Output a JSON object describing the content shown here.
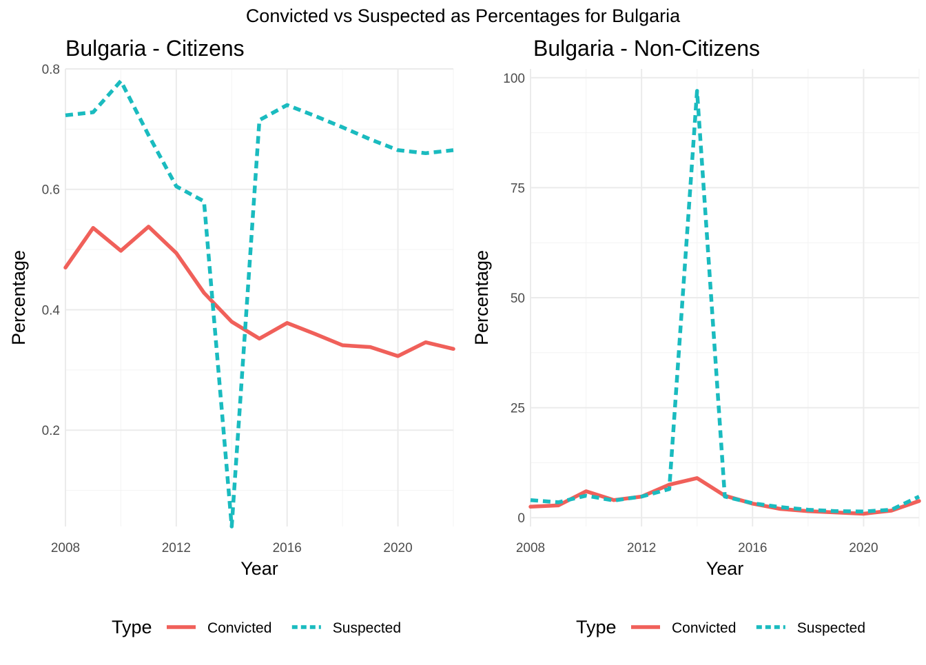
{
  "figure": {
    "title": "Convicted vs Suspected as Percentages for Bulgaria"
  },
  "colors": {
    "convicted": "#F0605A",
    "suspected": "#1ABBBF",
    "grid_major": "#EBEBEB",
    "grid_minor": "#F3F3F3",
    "text": "#000000",
    "tick_text": "#4D4D4D"
  },
  "chart_data": [
    {
      "type": "line",
      "title": "Bulgaria - Citizens",
      "xlabel": "Year",
      "ylabel": "Percentage",
      "xlim": [
        2008,
        2022
      ],
      "ylim": [
        0.04,
        0.8
      ],
      "x_ticks": [
        2008,
        2012,
        2016,
        2020
      ],
      "x_tick_labels": [
        "2008",
        "2012",
        "2016",
        "2020"
      ],
      "y_ticks": [
        0.2,
        0.4,
        0.6,
        0.8
      ],
      "y_tick_labels": [
        "0.2",
        "0.4",
        "0.6",
        "0.8"
      ],
      "grid": true,
      "legend": "bottom",
      "legend_title": "Type",
      "x": [
        2008,
        2009,
        2010,
        2011,
        2012,
        2013,
        2014,
        2015,
        2016,
        2017,
        2018,
        2019,
        2020,
        2021,
        2022
      ],
      "series": [
        {
          "name": "Convicted",
          "line_style": "solid",
          "values": [
            0.47,
            0.536,
            0.498,
            0.538,
            0.494,
            0.428,
            0.38,
            0.352,
            0.378,
            0.36,
            0.341,
            0.338,
            0.323,
            0.346,
            0.335
          ]
        },
        {
          "name": "Suspected",
          "line_style": "dashed",
          "values": [
            0.723,
            0.728,
            0.78,
            0.69,
            0.605,
            0.58,
            0.04,
            0.715,
            0.74,
            0.722,
            0.703,
            0.683,
            0.665,
            0.66,
            0.665
          ]
        }
      ]
    },
    {
      "type": "line",
      "title": "Bulgaria - Non-Citizens",
      "xlabel": "Year",
      "ylabel": "Percentage",
      "xlim": [
        2008,
        2022
      ],
      "ylim": [
        -2,
        102
      ],
      "x_ticks": [
        2008,
        2012,
        2016,
        2020
      ],
      "x_tick_labels": [
        "2008",
        "2012",
        "2016",
        "2020"
      ],
      "y_ticks": [
        0,
        25,
        50,
        75,
        100
      ],
      "y_tick_labels": [
        "0",
        "25",
        "50",
        "75",
        "100"
      ],
      "grid": true,
      "legend": "bottom",
      "legend_title": "Type",
      "x": [
        2008,
        2009,
        2010,
        2011,
        2012,
        2013,
        2014,
        2015,
        2016,
        2017,
        2018,
        2019,
        2020,
        2021,
        2022
      ],
      "series": [
        {
          "name": "Convicted",
          "line_style": "solid",
          "values": [
            2.5,
            2.8,
            6.0,
            4.0,
            4.8,
            7.5,
            9.0,
            5.0,
            3.2,
            2.0,
            1.5,
            1.2,
            0.9,
            1.6,
            3.8
          ]
        },
        {
          "name": "Suspected",
          "line_style": "dashed",
          "values": [
            4.0,
            3.5,
            5.0,
            3.9,
            4.8,
            6.5,
            97.0,
            4.8,
            3.3,
            2.4,
            1.8,
            1.5,
            1.4,
            1.8,
            4.8
          ]
        }
      ]
    }
  ]
}
